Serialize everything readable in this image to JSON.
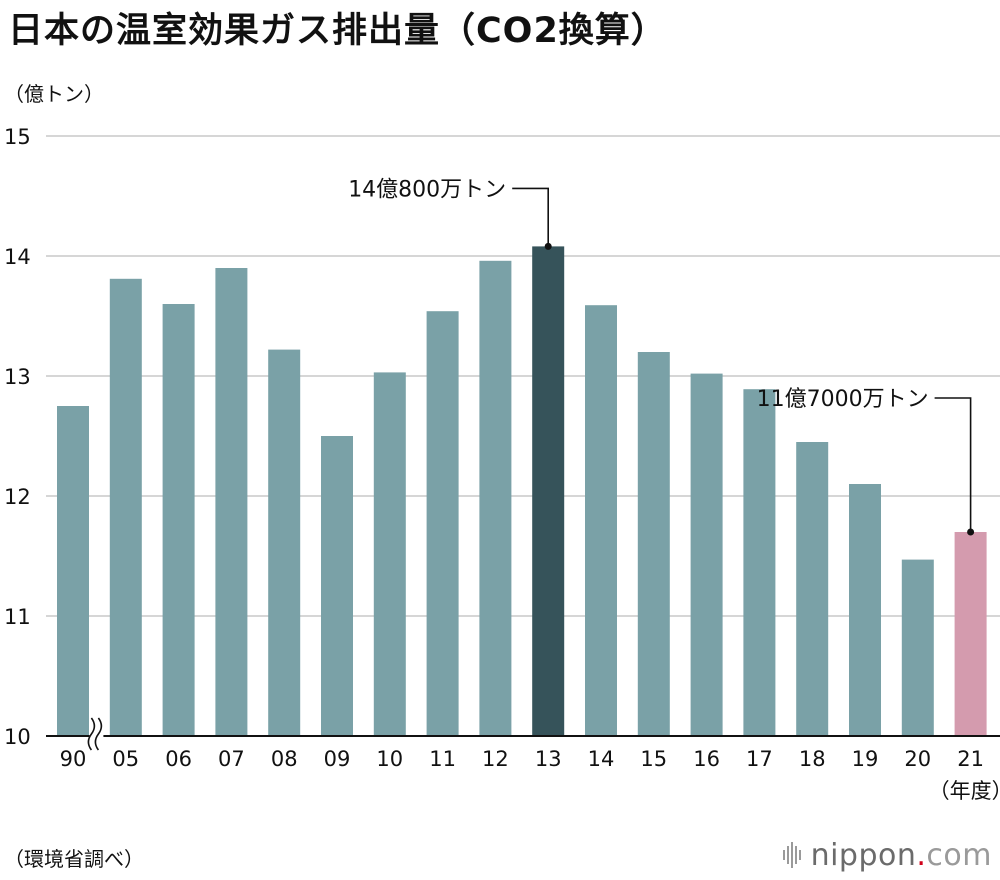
{
  "chart_data": {
    "type": "bar",
    "title": "日本の温室効果ガス排出量（CO2換算）",
    "ylabel": "（億トン）",
    "xlabel": "（年度）",
    "source": "（環境省調べ）",
    "ylim": [
      10,
      15
    ],
    "yticks": [
      "10",
      "11",
      "12",
      "13",
      "14",
      "15"
    ],
    "grid": true,
    "axis_break_after": "90",
    "categories": [
      "90",
      "05",
      "06",
      "07",
      "08",
      "09",
      "10",
      "11",
      "12",
      "13",
      "14",
      "15",
      "16",
      "17",
      "18",
      "19",
      "20",
      "21"
    ],
    "values": [
      12.75,
      13.81,
      13.6,
      13.9,
      13.22,
      12.5,
      13.03,
      13.54,
      13.96,
      14.08,
      13.59,
      13.2,
      13.02,
      12.89,
      12.45,
      12.1,
      11.47,
      11.7
    ],
    "colors": {
      "default": "#7aa1a7",
      "highlight_max": "#36535a",
      "highlight_latest": "#d49bae",
      "grid": "#c8c8c8",
      "axis": "#111111"
    },
    "annotations": [
      {
        "category": "13",
        "text": "14億800万トン",
        "value": 14.08
      },
      {
        "category": "21",
        "text": "11億7000万トン",
        "value": 11.7
      }
    ]
  },
  "brand": {
    "name": "nippon",
    "dot": ".",
    "suffix": "com",
    "icon": "nippon-logo-bars-icon"
  }
}
